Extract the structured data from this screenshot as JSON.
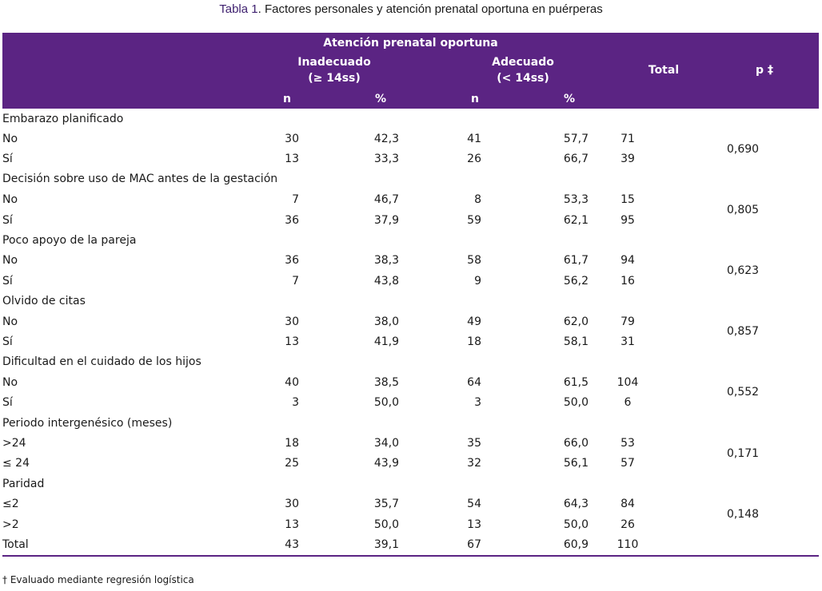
{
  "caption": {
    "label": "Tabla 1",
    "text": ". Factores personales y atención prenatal oportuna en puérperas"
  },
  "header": {
    "group": "Atención prenatal oportuna",
    "inadecuado": "Inadecuado",
    "inadecuado_sub": "(≥ 14ss)",
    "adecuado": "Adecuado",
    "adecuado_sub": "(< 14ss)",
    "total": "Total",
    "p": "p ‡",
    "n1": "n",
    "pct1": "%",
    "n2": "n",
    "pct2": "%"
  },
  "groups": [
    {
      "label": "Embarazo planificado",
      "p": "0,690",
      "rows": [
        {
          "label": "No",
          "n1": "30",
          "pct1": "42,3",
          "n2": "41",
          "pct2": "57,7",
          "total": "71"
        },
        {
          "label": "Sí",
          "n1": "13",
          "pct1": "33,3",
          "n2": "26",
          "pct2": "66,7",
          "total": "39"
        }
      ]
    },
    {
      "label": "Decisión sobre uso de MAC antes de la gestación",
      "p": "0,805",
      "rows": [
        {
          "label": "No",
          "n1": "7",
          "pct1": "46,7",
          "n2": "8",
          "pct2": "53,3",
          "total": "15"
        },
        {
          "label": "Sí",
          "n1": "36",
          "pct1": "37,9",
          "n2": "59",
          "pct2": "62,1",
          "total": "95"
        }
      ]
    },
    {
      "label": "Poco apoyo de la pareja",
      "p": "0,623",
      "rows": [
        {
          "label": "No",
          "n1": "36",
          "pct1": "38,3",
          "n2": "58",
          "pct2": "61,7",
          "total": "94"
        },
        {
          "label": "Sí",
          "n1": "7",
          "pct1": "43,8",
          "n2": "9",
          "pct2": "56,2",
          "total": "16"
        }
      ]
    },
    {
      "label": "Olvido de citas",
      "p": "0,857",
      "rows": [
        {
          "label": "No",
          "n1": "30",
          "pct1": "38,0",
          "n2": "49",
          "pct2": "62,0",
          "total": "79"
        },
        {
          "label": "Sí",
          "n1": "13",
          "pct1": "41,9",
          "n2": "18",
          "pct2": "58,1",
          "total": "31"
        }
      ]
    },
    {
      "label": "Dificultad en el cuidado de los hijos",
      "p": "0,552",
      "rows": [
        {
          "label": "No",
          "n1": "40",
          "pct1": "38,5",
          "n2": "64",
          "pct2": "61,5",
          "total": "104"
        },
        {
          "label": "Sí",
          "n1": "3",
          "pct1": "50,0",
          "n2": "3",
          "pct2": "50,0",
          "total": "6"
        }
      ]
    },
    {
      "label": "Periodo intergenésico (meses)",
      "p": "0,171",
      "rows": [
        {
          "label": ">24",
          "n1": "18",
          "pct1": "34,0",
          "n2": "35",
          "pct2": "66,0",
          "total": "53"
        },
        {
          "label": "≤ 24",
          "n1": "25",
          "pct1": "43,9",
          "n2": "32",
          "pct2": "56,1",
          "total": "57"
        }
      ]
    },
    {
      "label": "Paridad",
      "p": "0,148",
      "rows": [
        {
          "label": "≤2",
          "n1": "30",
          "pct1": "35,7",
          "n2": "54",
          "pct2": "64,3",
          "total": "84"
        },
        {
          "label": ">2",
          "n1": "13",
          "pct1": "50,0",
          "n2": "13",
          "pct2": "50,0",
          "total": "26"
        }
      ]
    }
  ],
  "total_row": {
    "label": "Total",
    "n1": "43",
    "pct1": "39,1",
    "n2": "67",
    "pct2": "60,9",
    "total": "110"
  },
  "footnote": "† Evaluado mediante regresión logística",
  "colors": {
    "header_bg": "#5b2483",
    "caption_label": "#3d1f6e",
    "rule": "#5b2483"
  }
}
